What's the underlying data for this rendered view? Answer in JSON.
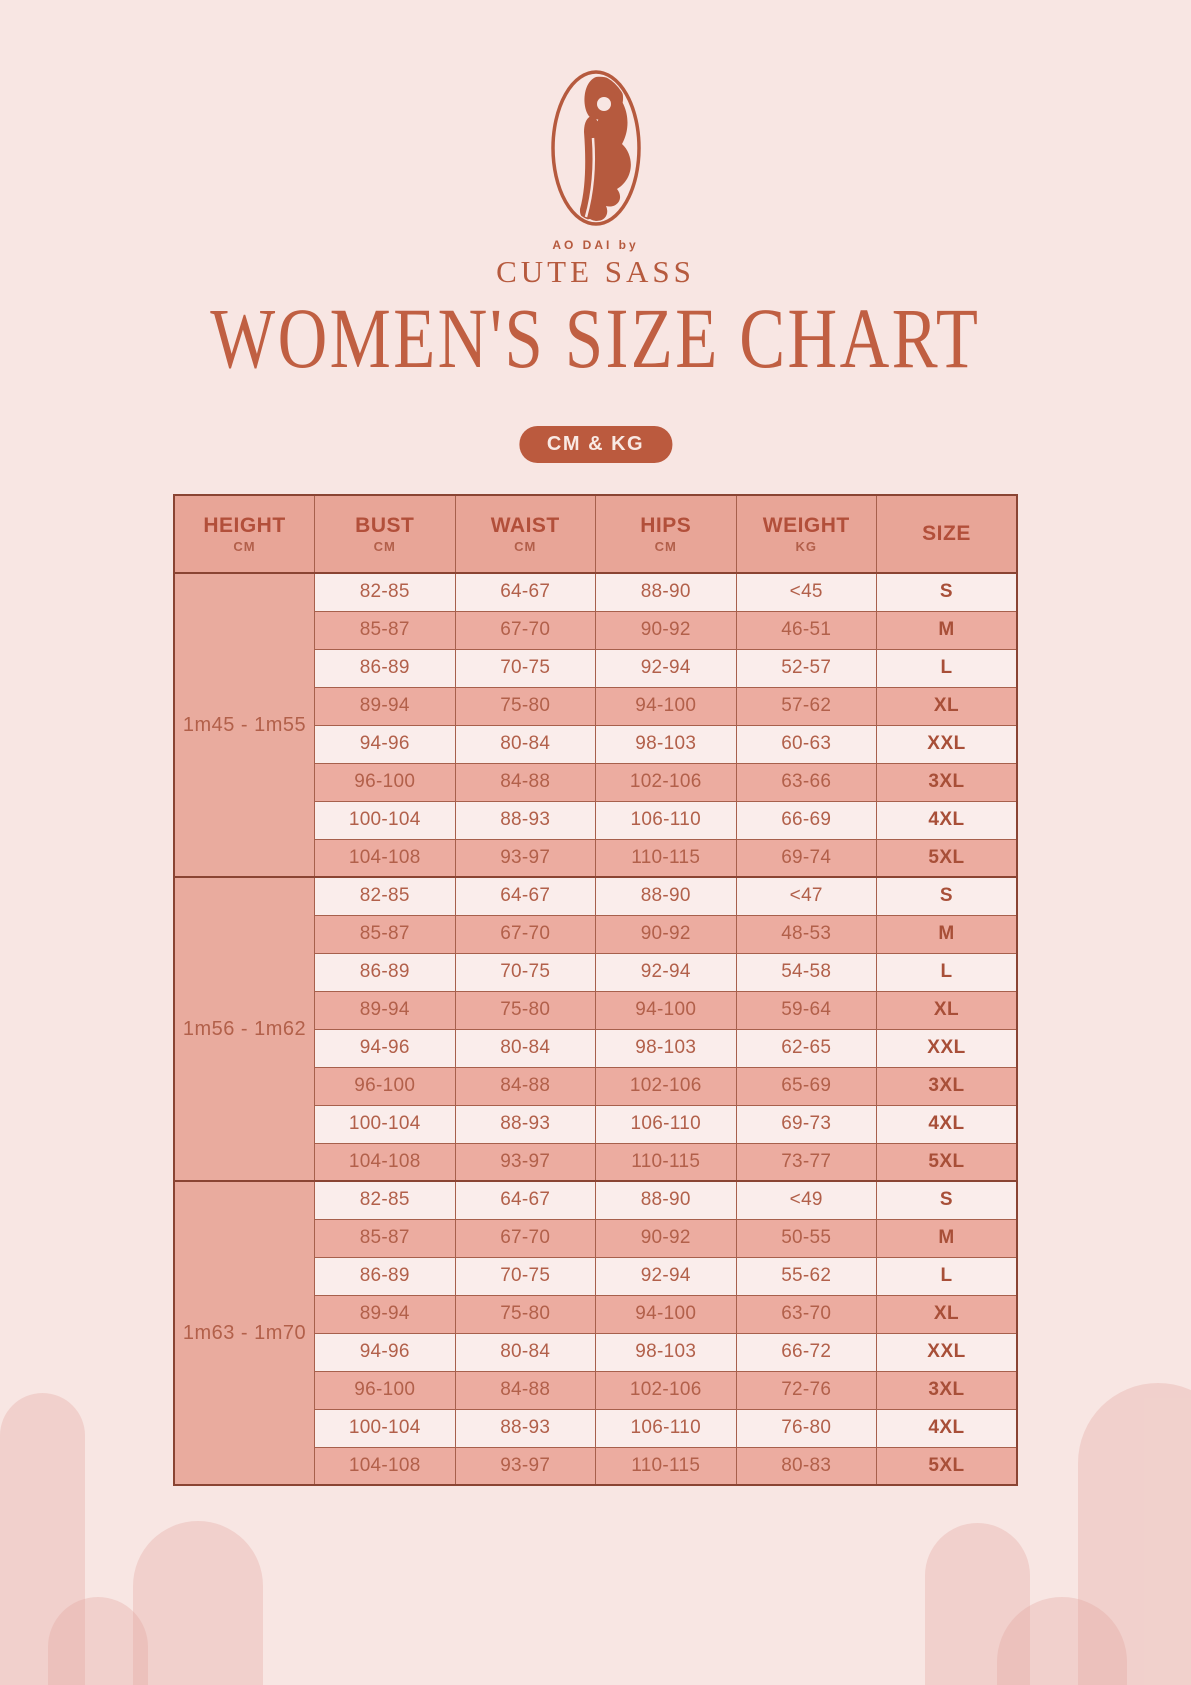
{
  "brand": {
    "tagline": "AO DAI by",
    "name": "CUTE SASS"
  },
  "title": "WOMEN'S SIZE CHART",
  "unit_badge": "CM & KG",
  "colors": {
    "background": "#f8e6e3",
    "accent_terracotta": "#bb5a3e",
    "title_color": "#c05f42",
    "table_header_bg": "#e8a597",
    "table_dark_row_bg": "#ecaca0",
    "table_light_row_bg": "#faedeb",
    "table_border": "#a7604c",
    "table_border_strong": "#8a4433",
    "cell_text": "#b2604a"
  },
  "table": {
    "columns": [
      {
        "label": "HEIGHT",
        "unit": "CM"
      },
      {
        "label": "BUST",
        "unit": "CM"
      },
      {
        "label": "WAIST",
        "unit": "CM"
      },
      {
        "label": "HIPS",
        "unit": "CM"
      },
      {
        "label": "WEIGHT",
        "unit": "KG"
      },
      {
        "label": "SIZE",
        "unit": ""
      }
    ],
    "groups": [
      {
        "height": "1m45 - 1m55",
        "rows": [
          {
            "bust": "82-85",
            "waist": "64-67",
            "hips": "88-90",
            "weight": "<45",
            "size": "S"
          },
          {
            "bust": "85-87",
            "waist": "67-70",
            "hips": "90-92",
            "weight": "46-51",
            "size": "M"
          },
          {
            "bust": "86-89",
            "waist": "70-75",
            "hips": "92-94",
            "weight": "52-57",
            "size": "L"
          },
          {
            "bust": "89-94",
            "waist": "75-80",
            "hips": "94-100",
            "weight": "57-62",
            "size": "XL"
          },
          {
            "bust": "94-96",
            "waist": "80-84",
            "hips": "98-103",
            "weight": "60-63",
            "size": "XXL"
          },
          {
            "bust": "96-100",
            "waist": "84-88",
            "hips": "102-106",
            "weight": "63-66",
            "size": "3XL"
          },
          {
            "bust": "100-104",
            "waist": "88-93",
            "hips": "106-110",
            "weight": "66-69",
            "size": "4XL"
          },
          {
            "bust": "104-108",
            "waist": "93-97",
            "hips": "110-115",
            "weight": "69-74",
            "size": "5XL"
          }
        ]
      },
      {
        "height": "1m56 - 1m62",
        "rows": [
          {
            "bust": "82-85",
            "waist": "64-67",
            "hips": "88-90",
            "weight": "<47",
            "size": "S"
          },
          {
            "bust": "85-87",
            "waist": "67-70",
            "hips": "90-92",
            "weight": "48-53",
            "size": "M"
          },
          {
            "bust": "86-89",
            "waist": "70-75",
            "hips": "92-94",
            "weight": "54-58",
            "size": "L"
          },
          {
            "bust": "89-94",
            "waist": "75-80",
            "hips": "94-100",
            "weight": "59-64",
            "size": "XL"
          },
          {
            "bust": "94-96",
            "waist": "80-84",
            "hips": "98-103",
            "weight": "62-65",
            "size": "XXL"
          },
          {
            "bust": "96-100",
            "waist": "84-88",
            "hips": "102-106",
            "weight": "65-69",
            "size": "3XL"
          },
          {
            "bust": "100-104",
            "waist": "88-93",
            "hips": "106-110",
            "weight": "69-73",
            "size": "4XL"
          },
          {
            "bust": "104-108",
            "waist": "93-97",
            "hips": "110-115",
            "weight": "73-77",
            "size": "5XL"
          }
        ]
      },
      {
        "height": "1m63 - 1m70",
        "rows": [
          {
            "bust": "82-85",
            "waist": "64-67",
            "hips": "88-90",
            "weight": "<49",
            "size": "S"
          },
          {
            "bust": "85-87",
            "waist": "67-70",
            "hips": "90-92",
            "weight": "50-55",
            "size": "M"
          },
          {
            "bust": "86-89",
            "waist": "70-75",
            "hips": "92-94",
            "weight": "55-62",
            "size": "L"
          },
          {
            "bust": "89-94",
            "waist": "75-80",
            "hips": "94-100",
            "weight": "63-70",
            "size": "XL"
          },
          {
            "bust": "94-96",
            "waist": "80-84",
            "hips": "98-103",
            "weight": "66-72",
            "size": "XXL"
          },
          {
            "bust": "96-100",
            "waist": "84-88",
            "hips": "102-106",
            "weight": "72-76",
            "size": "3XL"
          },
          {
            "bust": "100-104",
            "waist": "88-93",
            "hips": "106-110",
            "weight": "76-80",
            "size": "4XL"
          },
          {
            "bust": "104-108",
            "waist": "93-97",
            "hips": "110-115",
            "weight": "80-83",
            "size": "5XL"
          }
        ]
      }
    ]
  }
}
